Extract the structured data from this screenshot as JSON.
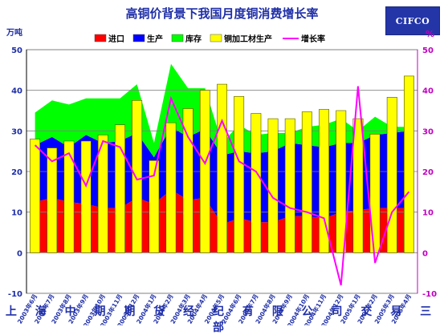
{
  "header": {
    "title": "高铜价背景下我国月度铜消费增长率",
    "logo_text": "CIFCO"
  },
  "footer": {
    "text": "上 海 中 期 期 货 经 纪 有 限 公 司 交 易 三 部"
  },
  "chart_data": {
    "type": "bar",
    "stacked_area": true,
    "ylabel_left": "万吨",
    "ylabel_right": "%",
    "ylim_left": [
      -10,
      50
    ],
    "ylim_right": [
      -10,
      50
    ],
    "yticks": [
      -10,
      0,
      10,
      20,
      30,
      40,
      50
    ],
    "grid": true,
    "legend_position": "top",
    "categories": [
      "2003年6月",
      "2003年7月",
      "2003年8月",
      "2003年9月",
      "2003年10月",
      "2003年11月",
      "2003年12月",
      "2004年1月",
      "2004年2月",
      "2004年3月",
      "2004年4月",
      "2004年5月",
      "2004年6月",
      "2004年7月",
      "2004年8月",
      "2004年9月",
      "2004年10月",
      "2004年11月",
      "2004年12月",
      "2005年1月",
      "2005年2月",
      "2005年3月",
      "2005年4月"
    ],
    "series": [
      {
        "name": "进口",
        "type": "area",
        "color": "#ff0000",
        "values": [
          12.5,
          13.5,
          12.5,
          12,
          11,
          11,
          13.5,
          12,
          15.5,
          13,
          13.5,
          7,
          8.5,
          7.5,
          7.5,
          9,
          9,
          8.5,
          10,
          10.5,
          11,
          11,
          11
        ]
      },
      {
        "name": "生产",
        "type": "area",
        "color": "#0000ff",
        "values": [
          14,
          15,
          13.5,
          17,
          16,
          16.5,
          16,
          11.5,
          15.5,
          15.5,
          17,
          17,
          16.5,
          17,
          17.5,
          18,
          17.5,
          17.5,
          17,
          16.5,
          18,
          18.5,
          19
        ]
      },
      {
        "name": "库存",
        "type": "area",
        "color": "#00ff00",
        "values": [
          8,
          9,
          10.5,
          9,
          11,
          10.5,
          12,
          3.5,
          15.5,
          12,
          10,
          3,
          6.5,
          4.5,
          4.5,
          2.5,
          4.5,
          5.5,
          6,
          3,
          4.5,
          1.5,
          1
        ]
      },
      {
        "name": "铜加工材生产",
        "type": "bar",
        "color": "#ffff00",
        "values": [
          28,
          25.8,
          27.5,
          27.5,
          29,
          31.5,
          37.5,
          22.7,
          32,
          35.5,
          40,
          41.5,
          38.5,
          34.3,
          33,
          33,
          34.7,
          35.3,
          35,
          33,
          29.2,
          38.3,
          43.5
        ]
      },
      {
        "name": "增长率",
        "type": "line",
        "axis": "right",
        "color": "#ff00ff",
        "values": [
          26.5,
          22.5,
          24.5,
          16.5,
          27.5,
          26,
          18,
          19,
          38,
          28.5,
          22,
          32.5,
          22.5,
          20,
          13.5,
          11,
          10,
          8.5,
          -8,
          41,
          -2.5,
          10,
          15
        ]
      }
    ]
  }
}
